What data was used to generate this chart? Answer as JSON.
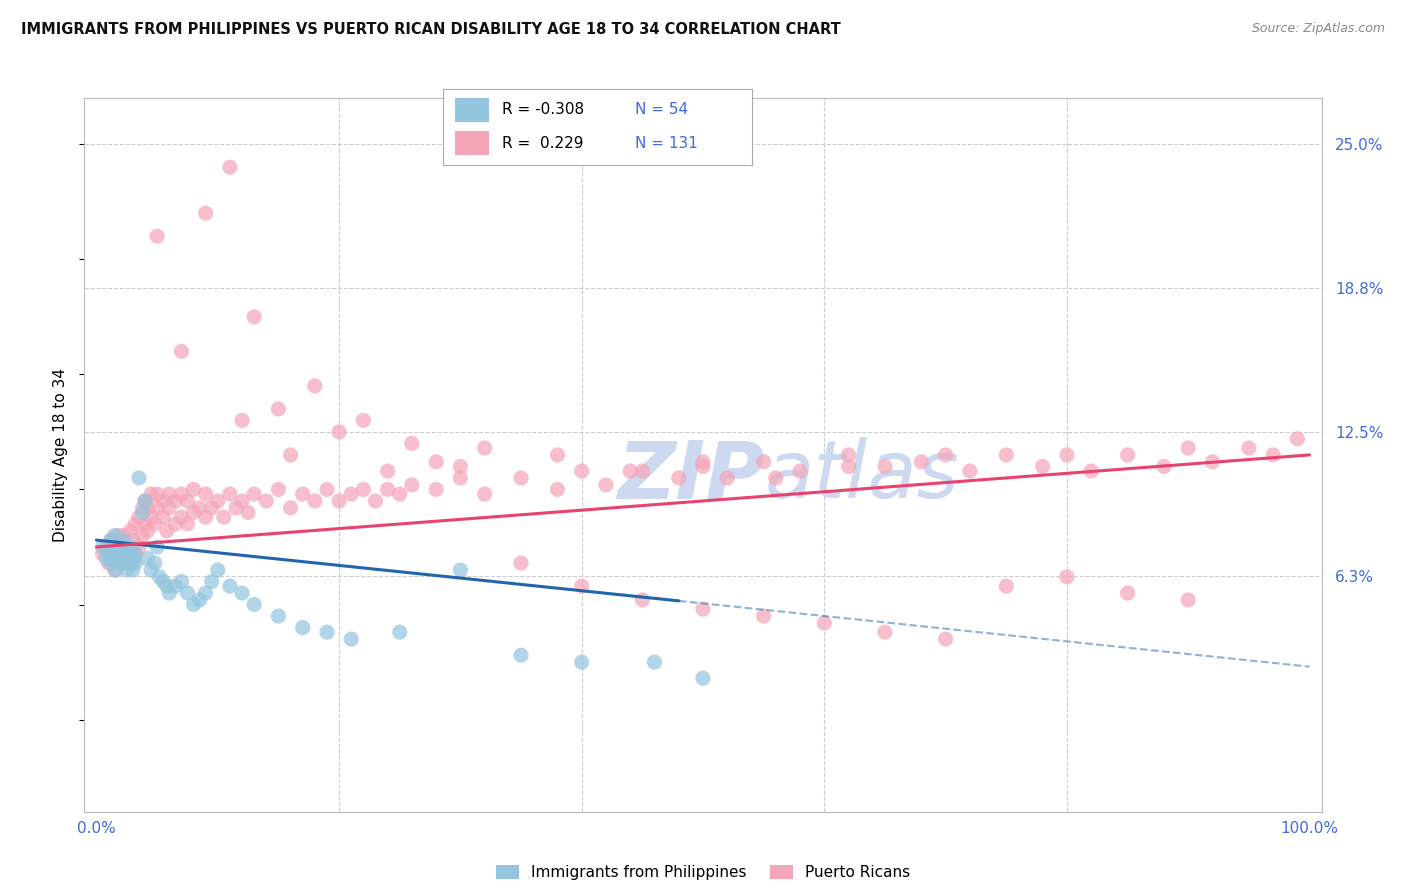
{
  "title": "IMMIGRANTS FROM PHILIPPINES VS PUERTO RICAN DISABILITY AGE 18 TO 34 CORRELATION CHART",
  "source": "Source: ZipAtlas.com",
  "ylabel": "Disability Age 18 to 34",
  "y_tick_labels_right": [
    "6.3%",
    "12.5%",
    "18.8%",
    "25.0%"
  ],
  "y_tick_vals_right": [
    0.0625,
    0.125,
    0.1875,
    0.25
  ],
  "xlim": [
    -0.01,
    1.01
  ],
  "ylim": [
    -0.04,
    0.27
  ],
  "color_blue": "#92c5de",
  "color_pink": "#f4a5b8",
  "color_line_blue": "#2166ac",
  "color_line_pink": "#e8436e",
  "color_axis_blue": "#4169E1",
  "watermark_color": "#ccd9f0",
  "philippines_x": [
    0.005,
    0.008,
    0.01,
    0.012,
    0.012,
    0.015,
    0.015,
    0.016,
    0.018,
    0.018,
    0.02,
    0.02,
    0.022,
    0.022,
    0.025,
    0.025,
    0.028,
    0.028,
    0.03,
    0.03,
    0.032,
    0.032,
    0.035,
    0.038,
    0.04,
    0.042,
    0.045,
    0.048,
    0.05,
    0.052,
    0.055,
    0.058,
    0.06,
    0.065,
    0.07,
    0.075,
    0.08,
    0.085,
    0.09,
    0.095,
    0.1,
    0.11,
    0.12,
    0.13,
    0.15,
    0.17,
    0.19,
    0.21,
    0.25,
    0.3,
    0.35,
    0.4,
    0.46,
    0.5
  ],
  "philippines_y": [
    0.075,
    0.07,
    0.072,
    0.068,
    0.078,
    0.073,
    0.08,
    0.065,
    0.075,
    0.07,
    0.068,
    0.075,
    0.07,
    0.078,
    0.065,
    0.072,
    0.068,
    0.075,
    0.07,
    0.065,
    0.072,
    0.068,
    0.105,
    0.09,
    0.095,
    0.07,
    0.065,
    0.068,
    0.075,
    0.062,
    0.06,
    0.058,
    0.055,
    0.058,
    0.06,
    0.055,
    0.05,
    0.052,
    0.055,
    0.06,
    0.065,
    0.058,
    0.055,
    0.05,
    0.045,
    0.04,
    0.038,
    0.035,
    0.038,
    0.065,
    0.028,
    0.025,
    0.025,
    0.018
  ],
  "puertorico_x": [
    0.005,
    0.008,
    0.01,
    0.012,
    0.015,
    0.015,
    0.018,
    0.018,
    0.02,
    0.02,
    0.022,
    0.022,
    0.025,
    0.025,
    0.028,
    0.028,
    0.03,
    0.03,
    0.032,
    0.032,
    0.035,
    0.035,
    0.038,
    0.038,
    0.04,
    0.04,
    0.042,
    0.042,
    0.045,
    0.045,
    0.048,
    0.05,
    0.05,
    0.055,
    0.055,
    0.058,
    0.06,
    0.06,
    0.065,
    0.065,
    0.07,
    0.07,
    0.075,
    0.075,
    0.08,
    0.08,
    0.085,
    0.09,
    0.09,
    0.095,
    0.1,
    0.105,
    0.11,
    0.115,
    0.12,
    0.125,
    0.13,
    0.14,
    0.15,
    0.16,
    0.17,
    0.18,
    0.19,
    0.2,
    0.21,
    0.22,
    0.23,
    0.24,
    0.25,
    0.26,
    0.28,
    0.3,
    0.32,
    0.35,
    0.38,
    0.4,
    0.42,
    0.45,
    0.48,
    0.5,
    0.52,
    0.55,
    0.58,
    0.62,
    0.65,
    0.68,
    0.7,
    0.72,
    0.75,
    0.78,
    0.8,
    0.82,
    0.85,
    0.88,
    0.9,
    0.92,
    0.95,
    0.97,
    0.99,
    0.05,
    0.07,
    0.09,
    0.11,
    0.13,
    0.15,
    0.18,
    0.22,
    0.26,
    0.3,
    0.35,
    0.4,
    0.45,
    0.5,
    0.55,
    0.6,
    0.65,
    0.7,
    0.75,
    0.8,
    0.85,
    0.9,
    0.12,
    0.16,
    0.2,
    0.24,
    0.28,
    0.32,
    0.38,
    0.44,
    0.5,
    0.56,
    0.62
  ],
  "puertorico_y": [
    0.072,
    0.075,
    0.068,
    0.078,
    0.065,
    0.075,
    0.07,
    0.08,
    0.068,
    0.075,
    0.072,
    0.08,
    0.068,
    0.075,
    0.07,
    0.082,
    0.068,
    0.078,
    0.072,
    0.085,
    0.075,
    0.088,
    0.08,
    0.092,
    0.085,
    0.095,
    0.082,
    0.092,
    0.088,
    0.098,
    0.085,
    0.092,
    0.098,
    0.088,
    0.095,
    0.082,
    0.092,
    0.098,
    0.085,
    0.095,
    0.088,
    0.098,
    0.085,
    0.095,
    0.09,
    0.1,
    0.092,
    0.088,
    0.098,
    0.092,
    0.095,
    0.088,
    0.098,
    0.092,
    0.095,
    0.09,
    0.098,
    0.095,
    0.1,
    0.092,
    0.098,
    0.095,
    0.1,
    0.095,
    0.098,
    0.1,
    0.095,
    0.1,
    0.098,
    0.102,
    0.1,
    0.105,
    0.098,
    0.105,
    0.1,
    0.108,
    0.102,
    0.108,
    0.105,
    0.11,
    0.105,
    0.112,
    0.108,
    0.115,
    0.11,
    0.112,
    0.115,
    0.108,
    0.115,
    0.11,
    0.115,
    0.108,
    0.115,
    0.11,
    0.118,
    0.112,
    0.118,
    0.115,
    0.122,
    0.21,
    0.16,
    0.22,
    0.24,
    0.175,
    0.135,
    0.145,
    0.13,
    0.12,
    0.11,
    0.068,
    0.058,
    0.052,
    0.048,
    0.045,
    0.042,
    0.038,
    0.035,
    0.058,
    0.062,
    0.055,
    0.052,
    0.13,
    0.115,
    0.125,
    0.108,
    0.112,
    0.118,
    0.115,
    0.108,
    0.112,
    0.105,
    0.11
  ]
}
